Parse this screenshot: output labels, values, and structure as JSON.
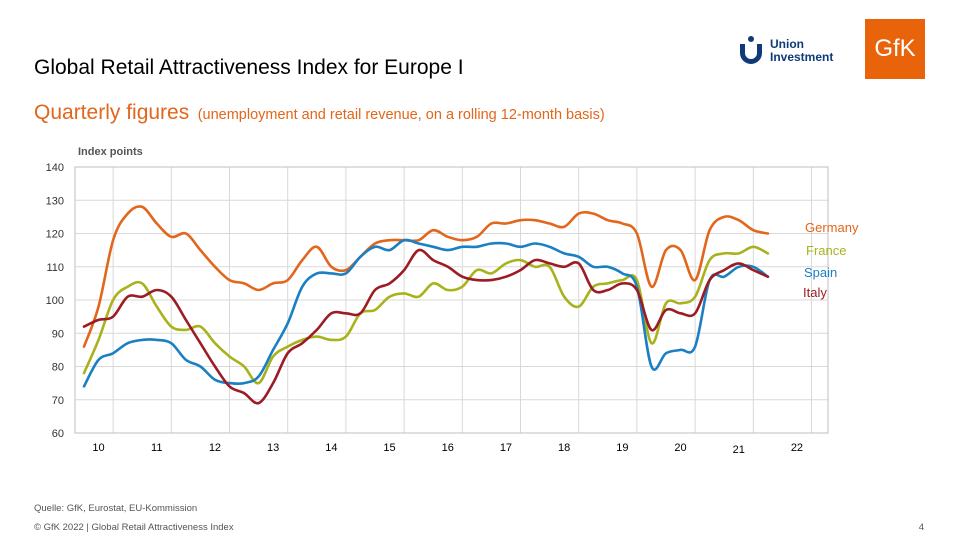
{
  "header": {
    "title": "Global Retail Attractiveness Index for Europe I",
    "subtitle": "Quarterly figures",
    "subtitle_note": "(unemployment  and retail revenue,  on a rolling 12-month basis)"
  },
  "logos": {
    "union_investment": "Union Investment",
    "gfk": "GfK"
  },
  "footer": {
    "source": "Quelle: GfK, Eurostat, EU-Kommission",
    "copyright": "© GfK 2022 | Global Retail Attractiveness Index",
    "page": "4"
  },
  "colors": {
    "germany": "#e2661b",
    "france": "#a8b31c",
    "spain": "#1a7fc3",
    "italy": "#9b1c24",
    "gfk_orange": "#e8630a",
    "union_blue": "#0e3a7a"
  },
  "chart_data": {
    "type": "line",
    "title": "",
    "ylabel": "Index points",
    "xlabel": "",
    "ylim": [
      60,
      140
    ],
    "yticks": [
      60,
      70,
      80,
      90,
      100,
      110,
      120,
      130,
      140
    ],
    "x_categories": [
      "10",
      "11",
      "12",
      "13",
      "14",
      "15",
      "16",
      "17",
      "18",
      "19",
      "20",
      "21",
      "22"
    ],
    "xlim": [
      2010.0,
      2022.25
    ],
    "grid": true,
    "legend": "right, labels at line ends",
    "series": [
      {
        "name": "Germany",
        "color": "#e2661b",
        "points": [
          [
            2010.0,
            86
          ],
          [
            2010.25,
            98
          ],
          [
            2010.5,
            118
          ],
          [
            2010.75,
            126
          ],
          [
            2011.0,
            128
          ],
          [
            2011.25,
            123
          ],
          [
            2011.5,
            119
          ],
          [
            2011.75,
            120
          ],
          [
            2012.0,
            115
          ],
          [
            2012.25,
            110
          ],
          [
            2012.5,
            106
          ],
          [
            2012.75,
            105
          ],
          [
            2013.0,
            103
          ],
          [
            2013.25,
            105
          ],
          [
            2013.5,
            106
          ],
          [
            2013.75,
            112
          ],
          [
            2014.0,
            116
          ],
          [
            2014.25,
            110
          ],
          [
            2014.5,
            109
          ],
          [
            2014.75,
            113
          ],
          [
            2015.0,
            117
          ],
          [
            2015.25,
            118
          ],
          [
            2015.5,
            118
          ],
          [
            2015.75,
            118
          ],
          [
            2016.0,
            121
          ],
          [
            2016.25,
            119
          ],
          [
            2016.5,
            118
          ],
          [
            2016.75,
            119
          ],
          [
            2017.0,
            123
          ],
          [
            2017.25,
            123
          ],
          [
            2017.5,
            124
          ],
          [
            2017.75,
            124
          ],
          [
            2018.0,
            123
          ],
          [
            2018.25,
            122
          ],
          [
            2018.5,
            126
          ],
          [
            2018.75,
            126
          ],
          [
            2019.0,
            124
          ],
          [
            2019.25,
            123
          ],
          [
            2019.5,
            120
          ],
          [
            2019.75,
            104
          ],
          [
            2020.0,
            115
          ],
          [
            2020.25,
            115
          ],
          [
            2020.5,
            106
          ],
          [
            2020.75,
            121
          ],
          [
            2021.0,
            125
          ],
          [
            2021.25,
            124
          ],
          [
            2021.5,
            121
          ],
          [
            2021.75,
            120
          ]
        ]
      },
      {
        "name": "France",
        "color": "#a8b31c",
        "points": [
          [
            2010.0,
            78
          ],
          [
            2010.25,
            88
          ],
          [
            2010.5,
            100
          ],
          [
            2010.75,
            104
          ],
          [
            2011.0,
            105
          ],
          [
            2011.25,
            98
          ],
          [
            2011.5,
            92
          ],
          [
            2011.75,
            91
          ],
          [
            2012.0,
            92
          ],
          [
            2012.25,
            87
          ],
          [
            2012.5,
            83
          ],
          [
            2012.75,
            80
          ],
          [
            2013.0,
            75
          ],
          [
            2013.25,
            83
          ],
          [
            2013.5,
            86
          ],
          [
            2013.75,
            88
          ],
          [
            2014.0,
            89
          ],
          [
            2014.25,
            88
          ],
          [
            2014.5,
            89
          ],
          [
            2014.75,
            96
          ],
          [
            2015.0,
            97
          ],
          [
            2015.25,
            101
          ],
          [
            2015.5,
            102
          ],
          [
            2015.75,
            101
          ],
          [
            2016.0,
            105
          ],
          [
            2016.25,
            103
          ],
          [
            2016.5,
            104
          ],
          [
            2016.75,
            109
          ],
          [
            2017.0,
            108
          ],
          [
            2017.25,
            111
          ],
          [
            2017.5,
            112
          ],
          [
            2017.75,
            110
          ],
          [
            2018.0,
            110
          ],
          [
            2018.25,
            101
          ],
          [
            2018.5,
            98
          ],
          [
            2018.75,
            104
          ],
          [
            2019.0,
            105
          ],
          [
            2019.25,
            106
          ],
          [
            2019.5,
            106
          ],
          [
            2019.75,
            87
          ],
          [
            2020.0,
            99
          ],
          [
            2020.25,
            99
          ],
          [
            2020.5,
            101
          ],
          [
            2020.75,
            112
          ],
          [
            2021.0,
            114
          ],
          [
            2021.25,
            114
          ],
          [
            2021.5,
            116
          ],
          [
            2021.75,
            114
          ]
        ]
      },
      {
        "name": "Spain",
        "color": "#1a7fc3",
        "points": [
          [
            2010.0,
            74
          ],
          [
            2010.25,
            82
          ],
          [
            2010.5,
            84
          ],
          [
            2010.75,
            87
          ],
          [
            2011.0,
            88
          ],
          [
            2011.25,
            88
          ],
          [
            2011.5,
            87
          ],
          [
            2011.75,
            82
          ],
          [
            2012.0,
            80
          ],
          [
            2012.25,
            76
          ],
          [
            2012.5,
            75
          ],
          [
            2012.75,
            75
          ],
          [
            2013.0,
            77
          ],
          [
            2013.25,
            85
          ],
          [
            2013.5,
            93
          ],
          [
            2013.75,
            104
          ],
          [
            2014.0,
            108
          ],
          [
            2014.25,
            108
          ],
          [
            2014.5,
            108
          ],
          [
            2014.75,
            113
          ],
          [
            2015.0,
            116
          ],
          [
            2015.25,
            115
          ],
          [
            2015.5,
            118
          ],
          [
            2015.75,
            117
          ],
          [
            2016.0,
            116
          ],
          [
            2016.25,
            115
          ],
          [
            2016.5,
            116
          ],
          [
            2016.75,
            116
          ],
          [
            2017.0,
            117
          ],
          [
            2017.25,
            117
          ],
          [
            2017.5,
            116
          ],
          [
            2017.75,
            117
          ],
          [
            2018.0,
            116
          ],
          [
            2018.25,
            114
          ],
          [
            2018.5,
            113
          ],
          [
            2018.75,
            110
          ],
          [
            2019.0,
            110
          ],
          [
            2019.25,
            108
          ],
          [
            2019.5,
            104
          ],
          [
            2019.75,
            80
          ],
          [
            2020.0,
            84
          ],
          [
            2020.25,
            85
          ],
          [
            2020.5,
            86
          ],
          [
            2020.75,
            106
          ],
          [
            2021.0,
            107
          ],
          [
            2021.25,
            110
          ],
          [
            2021.5,
            110
          ],
          [
            2021.75,
            107
          ]
        ]
      },
      {
        "name": "Italy",
        "color": "#9b1c24",
        "points": [
          [
            2010.0,
            92
          ],
          [
            2010.25,
            94
          ],
          [
            2010.5,
            95
          ],
          [
            2010.75,
            101
          ],
          [
            2011.0,
            101
          ],
          [
            2011.25,
            103
          ],
          [
            2011.5,
            101
          ],
          [
            2011.75,
            94
          ],
          [
            2012.0,
            87
          ],
          [
            2012.25,
            80
          ],
          [
            2012.5,
            74
          ],
          [
            2012.75,
            72
          ],
          [
            2013.0,
            69
          ],
          [
            2013.25,
            75
          ],
          [
            2013.5,
            84
          ],
          [
            2013.75,
            87
          ],
          [
            2014.0,
            91
          ],
          [
            2014.25,
            96
          ],
          [
            2014.5,
            96
          ],
          [
            2014.75,
            96
          ],
          [
            2015.0,
            103
          ],
          [
            2015.25,
            105
          ],
          [
            2015.5,
            109
          ],
          [
            2015.75,
            115
          ],
          [
            2016.0,
            112
          ],
          [
            2016.25,
            110
          ],
          [
            2016.5,
            107
          ],
          [
            2016.75,
            106
          ],
          [
            2017.0,
            106
          ],
          [
            2017.25,
            107
          ],
          [
            2017.5,
            109
          ],
          [
            2017.75,
            112
          ],
          [
            2018.0,
            111
          ],
          [
            2018.25,
            110
          ],
          [
            2018.5,
            111
          ],
          [
            2018.75,
            103
          ],
          [
            2019.0,
            103
          ],
          [
            2019.25,
            105
          ],
          [
            2019.5,
            103
          ],
          [
            2019.75,
            91
          ],
          [
            2020.0,
            97
          ],
          [
            2020.25,
            96
          ],
          [
            2020.5,
            96
          ],
          [
            2020.75,
            106
          ],
          [
            2021.0,
            109
          ],
          [
            2021.25,
            111
          ],
          [
            2021.5,
            109
          ],
          [
            2021.75,
            107
          ]
        ]
      }
    ]
  }
}
